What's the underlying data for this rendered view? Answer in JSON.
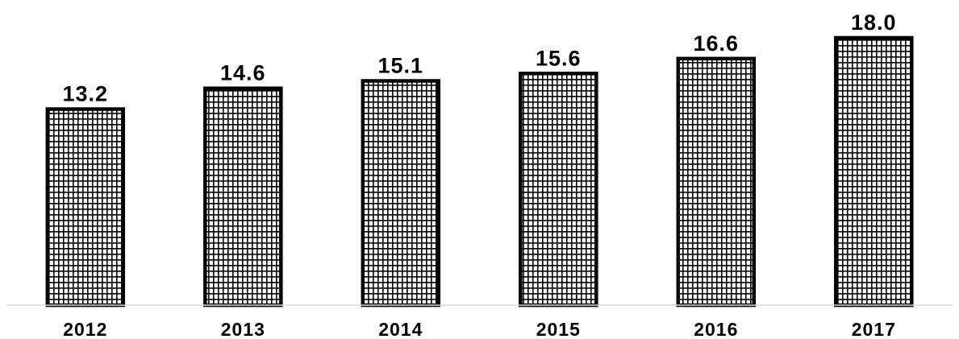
{
  "chart_data": {
    "type": "bar",
    "title": "",
    "xlabel": "",
    "ylabel": "",
    "categories": [
      "2012",
      "2013",
      "2014",
      "2015",
      "2016",
      "2017"
    ],
    "values": [
      13.2,
      14.6,
      15.1,
      15.6,
      16.6,
      18.0
    ],
    "value_labels": [
      "13.2",
      "14.6",
      "15.1",
      "15.6",
      "16.6",
      "18.0"
    ],
    "ylim": [
      0,
      18.0
    ],
    "grid": false,
    "legend": "none",
    "bar_fill_pattern": "grid-hatch",
    "colors": {
      "bar_stroke": "#000000",
      "bar_fill": "#ffffff",
      "hatch": "#000000",
      "axis": "#d9d9d9",
      "text": "#000000"
    }
  }
}
